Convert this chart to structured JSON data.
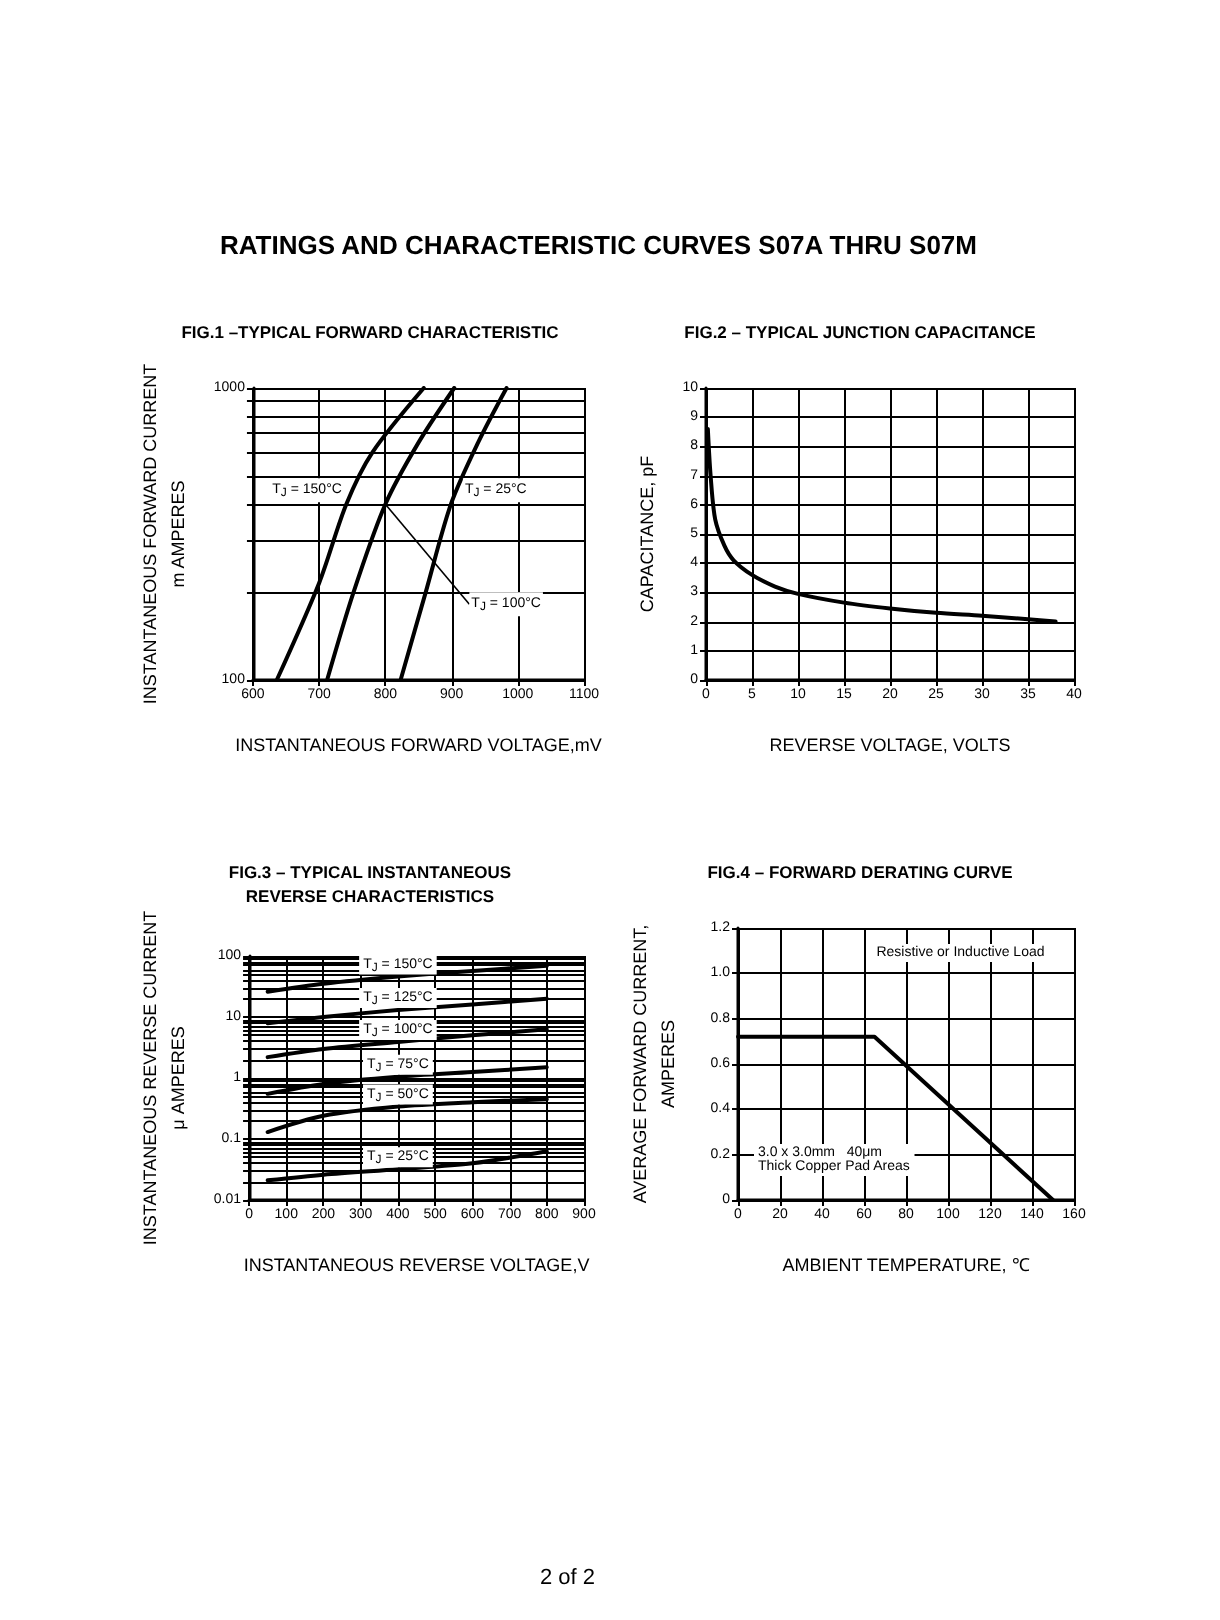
{
  "chart_data": [
    {
      "type": "other",
      "title": "RATINGS AND CHARACTERISTIC CURVES S07A THRU S07M",
      "annotations": [
        "2 of 2"
      ]
    },
    {
      "type": "line",
      "title": "FIG.1 –TYPICAL FORWARD CHARACTERISTIC",
      "xlabel": "INSTANTANEOUS FORWARD VOLTAGE,mV",
      "ylabel": "INSTANTANEOUS FORWARD CURRENT\nm AMPERES",
      "log": "y",
      "grid": true,
      "marker": "none",
      "line_style": "solid",
      "xlim": [
        600,
        1100
      ],
      "xticks": [
        600,
        700,
        800,
        900,
        1000,
        1100
      ],
      "ylim": [
        100,
        1000
      ],
      "yticks": [
        100,
        {
          "value": 200,
          "label": null
        },
        {
          "value": 300,
          "label": null
        },
        {
          "value": 400,
          "label": null
        },
        {
          "value": 500,
          "label": null
        },
        {
          "value": 600,
          "label": null
        },
        {
          "value": 700,
          "label": null
        },
        {
          "value": 800,
          "label": null
        },
        {
          "value": 900,
          "label": null
        },
        1000
      ],
      "series": [
        {
          "name": "T$_{J}$ = 150°C",
          "color": "#000000",
          "x": [
            636,
            700,
            741,
            780,
            858
          ],
          "values": [
            100,
            215,
            400,
            600,
            1000
          ]
        },
        {
          "name": "T$_{J}$ = 100°C",
          "color": "#000000",
          "x": [
            712,
            752,
            800,
            850,
            904
          ],
          "values": [
            100,
            200,
            400,
            650,
            1000
          ]
        },
        {
          "name": "T$_{J}$ = 25°C",
          "color": "#000000",
          "x": [
            823,
            861,
            899,
            940,
            983
          ],
          "values": [
            100,
            200,
            400,
            650,
            1000
          ]
        }
      ]
    },
    {
      "type": "line",
      "title": "FIG.2 – TYPICAL JUNCTION CAPACITANCE",
      "xlabel": "REVERSE VOLTAGE, VOLTS",
      "ylabel": "CAPACITANCE, pF",
      "grid": true,
      "marker": "none",
      "line_style": "solid",
      "xlim": [
        0,
        40
      ],
      "xticks": [
        0,
        5,
        10,
        15,
        20,
        25,
        30,
        35,
        40
      ],
      "ylim": [
        0,
        10
      ],
      "yticks": [
        0,
        1,
        2,
        3,
        4,
        5,
        6,
        7,
        8,
        9,
        10
      ],
      "series": [
        {
          "color": "#000000",
          "x": [
            0.2,
            0.5,
            1,
            2,
            3,
            5,
            7.5,
            10,
            15,
            20,
            25,
            30,
            35,
            38
          ],
          "values": [
            8.6,
            7,
            5.5,
            4.6,
            4.1,
            3.6,
            3.2,
            2.95,
            2.65,
            2.45,
            2.3,
            2.2,
            2.08,
            2.0
          ]
        }
      ]
    },
    {
      "type": "line",
      "title": "FIG.3 – TYPICAL INSTANTANEOUS\nREVERSE CHARACTERISTICS",
      "xlabel": "INSTANTANEOUS REVERSE VOLTAGE,V",
      "ylabel": "INSTANTANEOUS REVERSE CURRENT\nμ AMPERES",
      "log": "y",
      "grid": true,
      "marker": "none",
      "line_style": "solid",
      "xlim": [
        0,
        900
      ],
      "xticks": [
        0,
        100,
        200,
        300,
        400,
        500,
        600,
        700,
        800,
        900
      ],
      "ylim": [
        0.01,
        100
      ],
      "yticks": [
        0.01,
        {
          "value": 0.02,
          "label": null
        },
        {
          "value": 0.03,
          "label": null
        },
        {
          "value": 0.04,
          "label": null
        },
        {
          "value": 0.05,
          "label": null
        },
        {
          "value": 0.06,
          "label": null
        },
        {
          "value": 0.07,
          "label": null
        },
        {
          "value": 0.08,
          "label": null
        },
        {
          "value": 0.09,
          "label": null
        },
        0.1,
        {
          "value": 0.2,
          "label": null
        },
        {
          "value": 0.3,
          "label": null
        },
        {
          "value": 0.4,
          "label": null
        },
        {
          "value": 0.5,
          "label": null
        },
        {
          "value": 0.6,
          "label": null
        },
        {
          "value": 0.7,
          "label": null
        },
        {
          "value": 0.8,
          "label": null
        },
        {
          "value": 0.9,
          "label": null
        },
        1,
        {
          "value": 2,
          "label": null
        },
        {
          "value": 3,
          "label": null
        },
        {
          "value": 4,
          "label": null
        },
        {
          "value": 5,
          "label": null
        },
        {
          "value": 6,
          "label": null
        },
        {
          "value": 7,
          "label": null
        },
        {
          "value": 8,
          "label": null
        },
        {
          "value": 9,
          "label": null
        },
        10,
        {
          "value": 20,
          "label": null
        },
        {
          "value": 30,
          "label": null
        },
        {
          "value": 40,
          "label": null
        },
        {
          "value": 50,
          "label": null
        },
        {
          "value": 60,
          "label": null
        },
        {
          "value": 70,
          "label": null
        },
        {
          "value": 80,
          "label": null
        },
        {
          "value": 90,
          "label": null
        },
        100
      ],
      "series": [
        {
          "name": "T$_{J}$ = 150°C",
          "color": "#000000",
          "x": [
            50,
            200,
            400,
            600,
            800
          ],
          "values": [
            26,
            35,
            46,
            57,
            69
          ]
        },
        {
          "name": "T$_{J}$ = 125°C",
          "color": "#000000",
          "x": [
            50,
            200,
            400,
            600,
            800
          ],
          "values": [
            7.9,
            10,
            13,
            16,
            20
          ]
        },
        {
          "name": "T$_{J}$ = 100°C",
          "color": "#000000",
          "x": [
            50,
            200,
            400,
            600,
            800
          ],
          "values": [
            2.2,
            3,
            3.9,
            5,
            6.3
          ]
        },
        {
          "name": "T$_{J}$ = 75°C",
          "color": "#000000",
          "x": [
            50,
            200,
            400,
            600,
            800
          ],
          "values": [
            0.55,
            0.8,
            1.05,
            1.25,
            1.5
          ]
        },
        {
          "name": "T$_{J}$ = 50°C",
          "color": "#000000",
          "x": [
            50,
            200,
            400,
            600,
            800
          ],
          "values": [
            0.13,
            0.24,
            0.34,
            0.4,
            0.45
          ]
        },
        {
          "name": "T$_{J}$ = 25°C",
          "color": "#000000",
          "x": [
            50,
            200,
            400,
            600,
            800
          ],
          "values": [
            0.021,
            0.026,
            0.032,
            0.04,
            0.063
          ]
        }
      ]
    },
    {
      "type": "line",
      "title": "FIG.4 – FORWARD DERATING CURVE",
      "xlabel": "AMBIENT TEMPERATURE, ℃",
      "ylabel": "AVERAGE FORWARD CURRENT,\nAMPERES",
      "grid": true,
      "marker": "none",
      "line_style": "solid",
      "xlim": [
        0,
        160
      ],
      "xticks": [
        0,
        20,
        40,
        60,
        80,
        100,
        120,
        140,
        160
      ],
      "ylim": [
        0,
        1.2
      ],
      "yticks": [
        0,
        0.2,
        0.4,
        0.6,
        0.8,
        {
          "value": 1,
          "label": "1.0"
        },
        1.2
      ],
      "annotations": [
        "Resistive or Inductive Load",
        "3.0 x 3.0mm   40μm\nThick Copper Pad Areas"
      ],
      "series": [
        {
          "color": "#000000",
          "x": [
            0,
            65,
            150
          ],
          "values": [
            0.72,
            0.72,
            0
          ]
        }
      ]
    }
  ]
}
